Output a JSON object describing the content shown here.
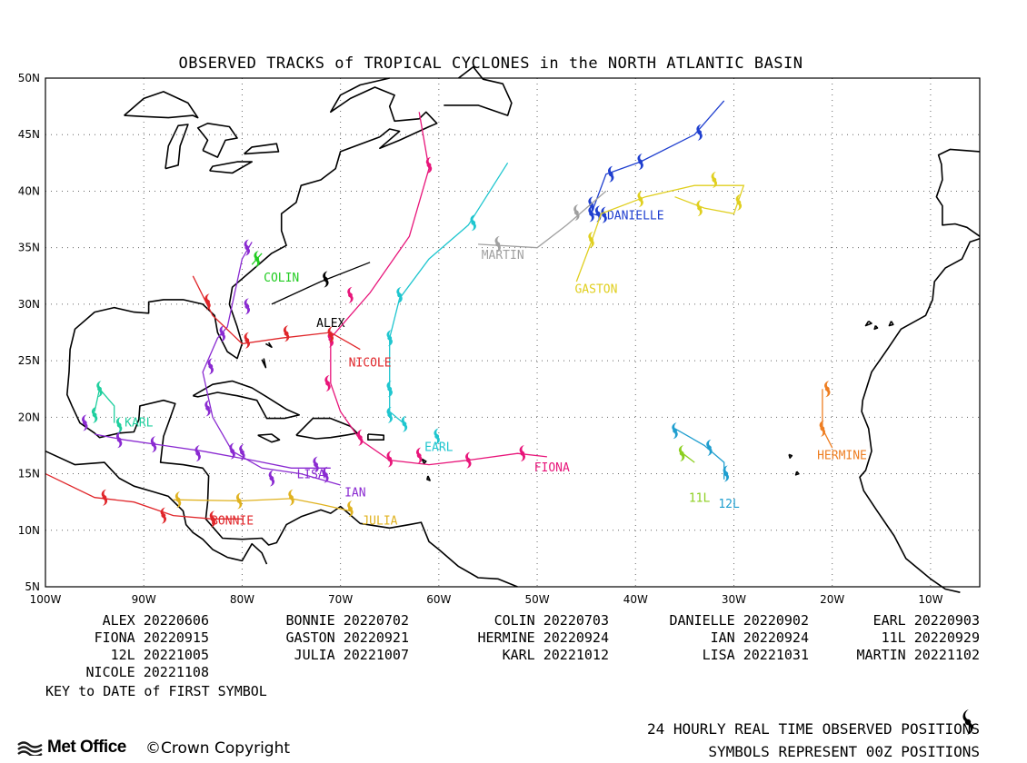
{
  "title": "OBSERVED TRACKS of TROPICAL CYCLONES in the NORTH ATLANTIC BASIN",
  "map": {
    "lon_range": [
      -100,
      -5
    ],
    "lat_range": [
      5,
      50
    ],
    "lat_labels": [
      "5N",
      "10N",
      "15N",
      "20N",
      "25N",
      "30N",
      "35N",
      "40N",
      "45N",
      "50N"
    ],
    "lon_labels": [
      "100W",
      "90W",
      "80W",
      "70W",
      "60W",
      "50W",
      "40W",
      "30W",
      "20W",
      "10W"
    ],
    "grid": true
  },
  "storms": [
    {
      "name": "ALEX",
      "color": "#000000",
      "label": [
        -71,
        28
      ],
      "track": [
        [
          -77,
          30
        ],
        [
          -72,
          32
        ],
        [
          -67,
          33.7
        ]
      ],
      "symbols": [
        [
          -71.5,
          32.2
        ]
      ]
    },
    {
      "name": "BONNIE",
      "color": "#e0262a",
      "label": [
        -81,
        10.5
      ],
      "track": [
        [
          -80,
          11
        ],
        [
          -83,
          11
        ],
        [
          -87,
          11.3
        ],
        [
          -91,
          12.5
        ],
        [
          -95,
          12.9
        ],
        [
          -100,
          15
        ]
      ],
      "symbols": [
        [
          -83,
          11
        ],
        [
          -88,
          11.3
        ],
        [
          -94,
          12.9
        ]
      ]
    },
    {
      "name": "COLIN",
      "color": "#22cc22",
      "label": [
        -76,
        32
      ],
      "track": [
        [
          -79,
          33.5
        ],
        [
          -78,
          34.5
        ]
      ],
      "symbols": [
        [
          -78.5,
          34
        ]
      ]
    },
    {
      "name": "DANIELLE",
      "color": "#1f3fcf",
      "label": [
        -40,
        37.5
      ],
      "track": [
        [
          -43.5,
          37.8
        ],
        [
          -44.5,
          38
        ],
        [
          -43,
          41.5
        ],
        [
          -39.5,
          42.6
        ],
        [
          -34,
          45
        ],
        [
          -31,
          48
        ]
      ],
      "symbols": [
        [
          -44.5,
          38.8
        ],
        [
          -44.5,
          38
        ],
        [
          -43.8,
          38
        ],
        [
          -43.2,
          37.9
        ],
        [
          -42.5,
          41.5
        ],
        [
          -39.5,
          42.6
        ],
        [
          -33.5,
          45.2
        ]
      ]
    },
    {
      "name": "EARL",
      "color": "#1fc6cf",
      "label": [
        -60,
        17
      ],
      "track": [
        [
          -63.5,
          19.4
        ],
        [
          -65,
          20.5
        ],
        [
          -65,
          24
        ],
        [
          -65,
          27
        ],
        [
          -64,
          30.5
        ],
        [
          -61,
          34
        ],
        [
          -57,
          37
        ],
        [
          -53,
          42.5
        ]
      ],
      "symbols": [
        [
          -63.5,
          19.4
        ],
        [
          -65,
          20.2
        ],
        [
          -65,
          22.5
        ],
        [
          -65,
          27
        ],
        [
          -64,
          30.8
        ],
        [
          -56.5,
          37.2
        ],
        [
          -60.2,
          18.3
        ]
      ]
    },
    {
      "name": "FIONA",
      "color": "#e8157a",
      "label": [
        -48.5,
        15.2
      ],
      "track": [
        [
          -49,
          16.5
        ],
        [
          -52,
          16.8
        ],
        [
          -57,
          16.2
        ],
        [
          -61,
          15.8
        ],
        [
          -65,
          16.2
        ],
        [
          -68,
          18
        ],
        [
          -70,
          20.5
        ],
        [
          -71,
          23
        ],
        [
          -71,
          27
        ],
        [
          -67,
          31
        ],
        [
          -63,
          36
        ],
        [
          -61,
          42
        ],
        [
          -62,
          47
        ]
      ],
      "symbols": [
        [
          -51.5,
          16.8
        ],
        [
          -57,
          16.2
        ],
        [
          -62,
          16.6
        ],
        [
          -65,
          16.3
        ],
        [
          -68,
          18.2
        ],
        [
          -71.3,
          23
        ],
        [
          -71,
          26.9
        ],
        [
          -69,
          30.8
        ],
        [
          -61,
          42.3
        ]
      ]
    },
    {
      "name": "GASTON",
      "color": "#e0cf1f",
      "label": [
        -44,
        31
      ],
      "track": [
        [
          -46,
          32
        ],
        [
          -44.5,
          35.5
        ],
        [
          -43.5,
          38
        ],
        [
          -39,
          39.5
        ],
        [
          -34,
          40.5
        ],
        [
          -29,
          40.5
        ],
        [
          -30,
          38
        ],
        [
          -33,
          38.5
        ],
        [
          -36,
          39.5
        ]
      ],
      "symbols": [
        [
          -44.5,
          35.7
        ],
        [
          -39.5,
          39.3
        ],
        [
          -32,
          41
        ],
        [
          -29.5,
          39
        ],
        [
          -33.5,
          38.5
        ]
      ]
    },
    {
      "name": "HERMINE",
      "color": "#ee7e22",
      "label": [
        -19,
        16.3
      ],
      "track": [
        [
          -21,
          22.5
        ],
        [
          -21,
          19
        ],
        [
          -20,
          17.3
        ]
      ],
      "symbols": [
        [
          -20.5,
          22.5
        ],
        [
          -21,
          19
        ]
      ]
    },
    {
      "name": "IAN",
      "color": "#8a2ad1",
      "label": [
        -68.5,
        13
      ],
      "track": [
        [
          -70,
          14
        ],
        [
          -74,
          15
        ],
        [
          -78,
          15.5
        ],
        [
          -81,
          17
        ],
        [
          -83,
          20
        ],
        [
          -84,
          24
        ],
        [
          -82.5,
          27
        ],
        [
          -81.5,
          28
        ],
        [
          -81,
          30
        ],
        [
          -80,
          34
        ],
        [
          -79,
          35.5
        ]
      ],
      "symbols": [
        [
          -71.5,
          14.9
        ],
        [
          -77,
          14.6
        ],
        [
          -81,
          17
        ],
        [
          -83.5,
          20.8
        ],
        [
          -83.2,
          24.5
        ],
        [
          -82,
          27.4
        ],
        [
          -79.5,
          29.8
        ],
        [
          -79.5,
          35
        ]
      ]
    },
    {
      "name": "JULIA",
      "color": "#e0b21f",
      "label": [
        -66,
        10.5
      ],
      "track": [
        [
          -69,
          11.7
        ],
        [
          -72,
          12.3
        ],
        [
          -75,
          12.8
        ],
        [
          -80,
          12.6
        ],
        [
          -87,
          12.7
        ]
      ],
      "symbols": [
        [
          -69,
          11.9
        ],
        [
          -75,
          12.9
        ],
        [
          -80.3,
          12.6
        ],
        [
          -86.5,
          12.7
        ]
      ]
    },
    {
      "name": "KARL",
      "color": "#1fcf9e",
      "label": [
        -90.5,
        19.2
      ],
      "track": [
        [
          -93,
          19.5
        ],
        [
          -93,
          21
        ],
        [
          -94.5,
          22.5
        ],
        [
          -95,
          20.5
        ]
      ],
      "symbols": [
        [
          -92.5,
          19.3
        ],
        [
          -94.5,
          22.5
        ],
        [
          -95,
          20.2
        ]
      ]
    },
    {
      "name": "LISA",
      "color": "#8a2ad1",
      "label": [
        -73,
        14.6
      ],
      "track": [
        [
          -71,
          15.5
        ],
        [
          -75,
          15.5
        ],
        [
          -79,
          16.2
        ],
        [
          -84,
          17
        ],
        [
          -88,
          17.5
        ],
        [
          -92,
          18
        ],
        [
          -95,
          18.5
        ]
      ],
      "symbols": [
        [
          -72.5,
          15.8
        ],
        [
          -80,
          16.9
        ],
        [
          -84.5,
          16.8
        ],
        [
          -89,
          17.6
        ],
        [
          -92.5,
          18
        ],
        [
          -96,
          19.5
        ]
      ]
    },
    {
      "name": "MARTIN",
      "color": "#a0a0a0",
      "label": [
        -53.5,
        34
      ],
      "track": [
        [
          -56,
          35.3
        ],
        [
          -50,
          35
        ],
        [
          -47,
          37
        ],
        [
          -43,
          40
        ]
      ],
      "symbols": [
        [
          -54,
          35.3
        ],
        [
          -46,
          38.1
        ]
      ]
    },
    {
      "name": "NICOLE",
      "color": "#e0262a",
      "label": [
        -67,
        24.5
      ],
      "track": [
        [
          -68,
          26
        ],
        [
          -71,
          27.5
        ],
        [
          -76,
          27
        ],
        [
          -80,
          26.5
        ],
        [
          -83,
          29
        ],
        [
          -85,
          32.5
        ]
      ],
      "symbols": [
        [
          -71,
          27.3
        ],
        [
          -75.5,
          27.4
        ],
        [
          -79.5,
          26.8
        ],
        [
          -83.5,
          30.2
        ]
      ]
    },
    {
      "name": "11L",
      "color": "#8ccf1f",
      "label": [
        -33.5,
        12.5
      ],
      "track": [
        [
          -35.5,
          17
        ],
        [
          -34,
          16
        ]
      ],
      "symbols": [
        [
          -35.3,
          16.8
        ]
      ]
    },
    {
      "name": "12L",
      "color": "#1f9ecf",
      "label": [
        -30.5,
        12
      ],
      "track": [
        [
          -36,
          19
        ],
        [
          -33,
          17.5
        ],
        [
          -31,
          16
        ],
        [
          -31,
          14.5
        ]
      ],
      "symbols": [
        [
          -36,
          18.8
        ],
        [
          -32.5,
          17.3
        ],
        [
          -30.8,
          15
        ]
      ]
    }
  ],
  "key": [
    {
      "name": "ALEX",
      "date": "20220606"
    },
    {
      "name": "BONNIE",
      "date": "20220702"
    },
    {
      "name": "COLIN",
      "date": "20220703"
    },
    {
      "name": "DANIELLE",
      "date": "20220902"
    },
    {
      "name": "EARL",
      "date": "20220903"
    },
    {
      "name": "FIONA",
      "date": "20220915"
    },
    {
      "name": "GASTON",
      "date": "20220921"
    },
    {
      "name": "HERMINE",
      "date": "20220924"
    },
    {
      "name": "IAN",
      "date": "20220924"
    },
    {
      "name": "11L",
      "date": "20220929"
    },
    {
      "name": "12L",
      "date": "20221005"
    },
    {
      "name": "JULIA",
      "date": "20221007"
    },
    {
      "name": "KARL",
      "date": "20221012"
    },
    {
      "name": "LISA",
      "date": "20221031"
    },
    {
      "name": "MARTIN",
      "date": "20221102"
    },
    {
      "name": "NICOLE",
      "date": "20221108"
    }
  ],
  "key_note": "KEY to DATE of FIRST SYMBOL",
  "footer": {
    "line1": "24 HOURLY REAL TIME OBSERVED POSITIONS",
    "line2": "SYMBOLS REPRESENT 00Z POSITIONS"
  },
  "logo_text": "Met Office",
  "copyright": "©Crown Copyright"
}
